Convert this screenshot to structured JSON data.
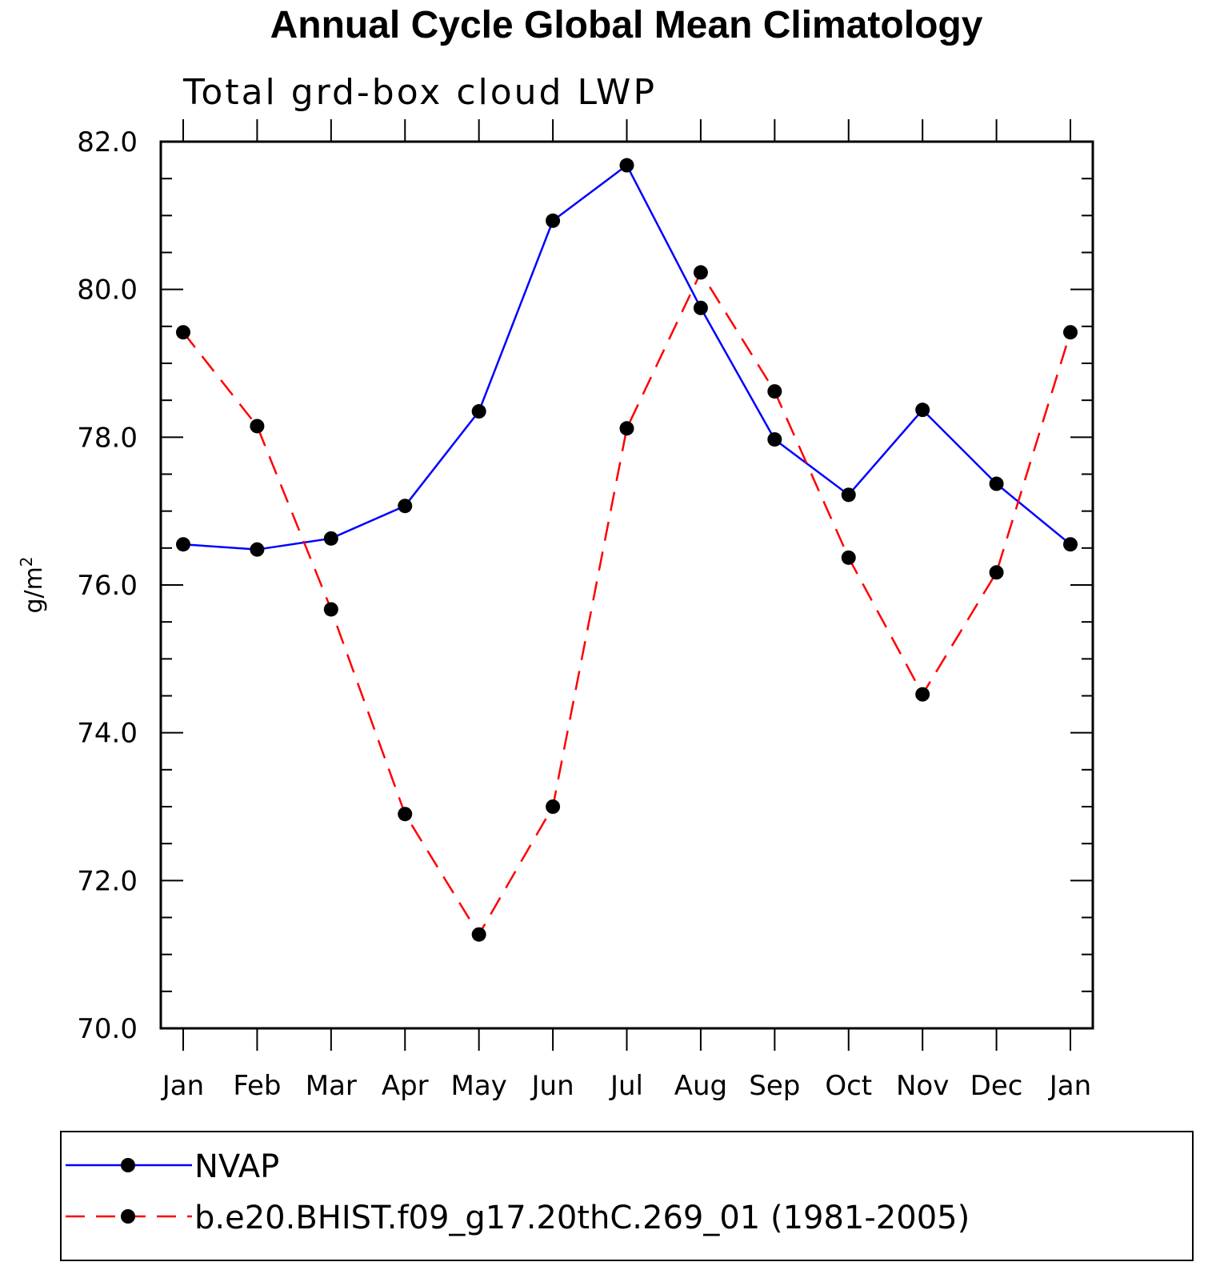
{
  "chart_data": {
    "type": "line",
    "title": "Annual Cycle Global Mean Climatology",
    "subtitle": "Total grd-box cloud LWP",
    "xlabel": "",
    "ylabel_base": "g/m",
    "ylabel_sup": "2",
    "categories": [
      "Jan",
      "Feb",
      "Mar",
      "Apr",
      "May",
      "Jun",
      "Jul",
      "Aug",
      "Sep",
      "Oct",
      "Nov",
      "Dec",
      "Jan"
    ],
    "ylim": [
      70.0,
      82.0
    ],
    "yticks": [
      "70.0",
      "72.0",
      "74.0",
      "76.0",
      "78.0",
      "80.0",
      "82.0"
    ],
    "grid": false,
    "legend_position": "bottom",
    "series": [
      {
        "name": "NVAP",
        "color": "#0000ff",
        "dash": "solid",
        "values": [
          76.55,
          76.48,
          76.63,
          77.07,
          78.35,
          80.93,
          81.68,
          79.75,
          77.97,
          77.22,
          78.37,
          77.37,
          76.55
        ]
      },
      {
        "name": "b.e20.BHIST.f09_g17.20thC.269_01 (1981-2005)",
        "color": "#ff0000",
        "dash": "dashed",
        "values": [
          79.42,
          78.15,
          75.67,
          72.9,
          71.27,
          73.0,
          78.12,
          80.23,
          78.62,
          76.37,
          74.52,
          76.17,
          79.42
        ]
      }
    ]
  }
}
